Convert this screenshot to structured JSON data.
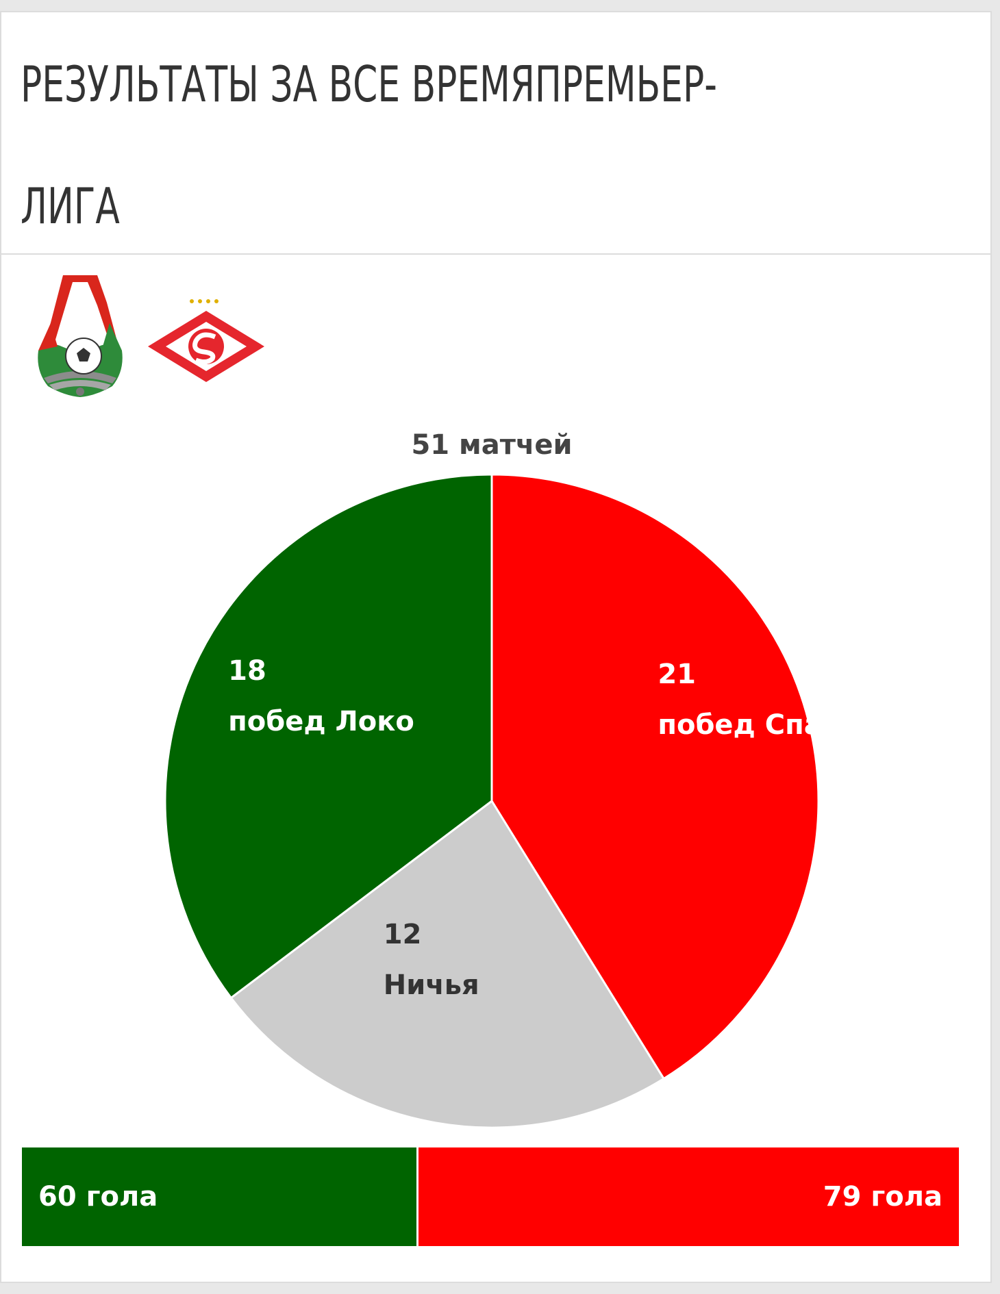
{
  "title_lines": [
    "РЕЗУЛЬТАТЫ ЗА ВСЕ ВРЕМЯПРЕМЬЕР-",
    "ЛИГА"
  ],
  "teams": [
    {
      "name": "Локомотив",
      "logo_icon": "lokomotiv-logo-icon",
      "color": "#006400"
    },
    {
      "name": "Спартак",
      "logo_icon": "spartak-logo-icon",
      "color": "#ff0000"
    }
  ],
  "chart_data": {
    "type": "pie",
    "title": "51 матчей",
    "total": 51,
    "slices": [
      {
        "value": 21,
        "number": "21",
        "label": "побед Спарта",
        "color": "#ff0000",
        "text_color": "#ffffff"
      },
      {
        "value": 12,
        "number": "12",
        "label": "Ничья",
        "color": "#cccccc",
        "text_color": "#333333"
      },
      {
        "value": 18,
        "number": "18",
        "label": "побед Локо",
        "color": "#006400",
        "text_color": "#ffffff"
      }
    ],
    "start": "12 o'clock, clockwise"
  },
  "goals": {
    "left": {
      "value": 60,
      "label": "60 гола",
      "color": "#006400"
    },
    "right": {
      "value": 79,
      "label": "79 гола",
      "color": "#ff0000"
    }
  }
}
